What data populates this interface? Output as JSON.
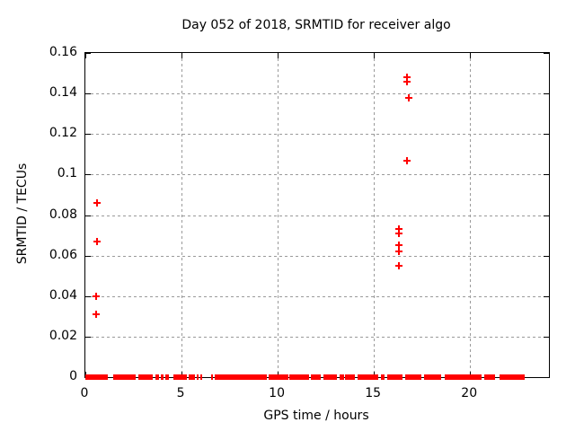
{
  "window": {
    "background": "#ffffff"
  },
  "chart_data": {
    "type": "scatter",
    "title": "Day 052 of 2018, SRMTID for receiver algo",
    "xlabel": "GPS time / hours",
    "ylabel": "SRMTID / TECUs",
    "xlim": [
      0,
      24.1
    ],
    "ylim": [
      0,
      0.16
    ],
    "x_ticks": [
      0,
      5,
      10,
      15,
      20
    ],
    "x_tick_labels": [
      "0",
      "5",
      "10",
      "15",
      "20"
    ],
    "y_ticks": [
      0,
      0.02,
      0.04,
      0.06,
      0.08,
      0.1,
      0.12,
      0.14,
      0.16
    ],
    "y_tick_labels": [
      "0",
      "0.02",
      "0.04",
      "0.06",
      "0.08",
      "0.1",
      "0.12",
      "0.14",
      "0.16"
    ],
    "grid": true,
    "grid_style": "dashed",
    "grid_color": "#9a9a9a",
    "marker": "plus",
    "marker_color": "#ff0000",
    "legend": "none",
    "series": [
      {
        "name": "SRMTID",
        "points": [
          {
            "x": 0.6,
            "y": 0.086
          },
          {
            "x": 0.6,
            "y": 0.067
          },
          {
            "x": 0.56,
            "y": 0.04
          },
          {
            "x": 0.56,
            "y": 0.031
          },
          {
            "x": 16.31,
            "y": 0.073
          },
          {
            "x": 16.31,
            "y": 0.071
          },
          {
            "x": 16.31,
            "y": 0.065
          },
          {
            "x": 16.31,
            "y": 0.062
          },
          {
            "x": 16.31,
            "y": 0.055
          },
          {
            "x": 16.73,
            "y": 0.148
          },
          {
            "x": 16.73,
            "y": 0.146
          },
          {
            "x": 16.82,
            "y": 0.138
          },
          {
            "x": 16.73,
            "y": 0.107
          }
        ]
      }
    ],
    "baseline_value": 0,
    "baseline_segments_hours": [
      [
        0.0,
        1.18
      ],
      [
        1.43,
        2.62
      ],
      [
        2.77,
        3.52
      ],
      [
        3.64,
        3.83
      ],
      [
        3.93,
        4.08
      ],
      [
        4.17,
        4.36
      ],
      [
        4.58,
        5.27
      ],
      [
        5.36,
        5.7
      ],
      [
        5.79,
        5.89
      ],
      [
        5.98,
        6.07
      ],
      [
        6.54,
        6.64
      ],
      [
        6.73,
        9.45
      ],
      [
        9.52,
        10.56
      ],
      [
        10.62,
        11.63
      ],
      [
        11.7,
        12.24
      ],
      [
        12.38,
        13.08
      ],
      [
        13.21,
        13.44
      ],
      [
        13.52,
        14.02
      ],
      [
        14.14,
        15.23
      ],
      [
        15.36,
        15.57
      ],
      [
        15.7,
        16.49
      ],
      [
        16.64,
        17.49
      ],
      [
        17.6,
        18.5
      ],
      [
        18.66,
        20.61
      ],
      [
        20.72,
        21.31
      ],
      [
        21.54,
        22.86
      ]
    ]
  }
}
